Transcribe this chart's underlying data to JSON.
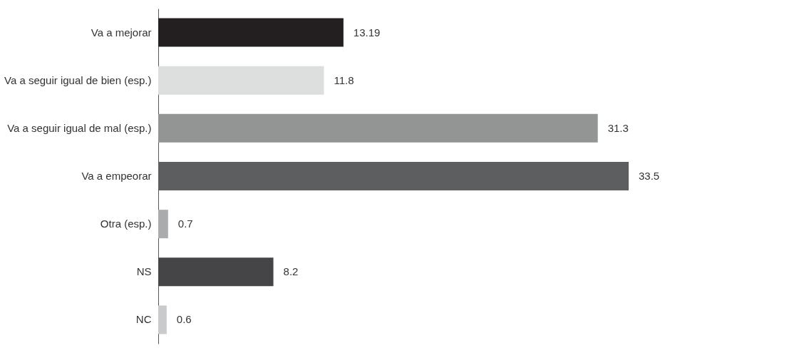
{
  "chart_data": {
    "type": "bar",
    "orientation": "horizontal",
    "data_labels": true,
    "categories": [
      "Va a mejorar",
      "Va a seguir igual de bien (esp.)",
      "Va a seguir igual de mal (esp.)",
      "Va a empeorar",
      "Otra (esp.)",
      "NS",
      "NC"
    ],
    "values": [
      13.19,
      11.8,
      31.3,
      33.5,
      0.7,
      8.2,
      0.6
    ],
    "colors": [
      "#231f20",
      "#dcdfde",
      "#939594",
      "#5d5e60",
      "#a9abad",
      "#454547",
      "#c9cacc"
    ]
  }
}
